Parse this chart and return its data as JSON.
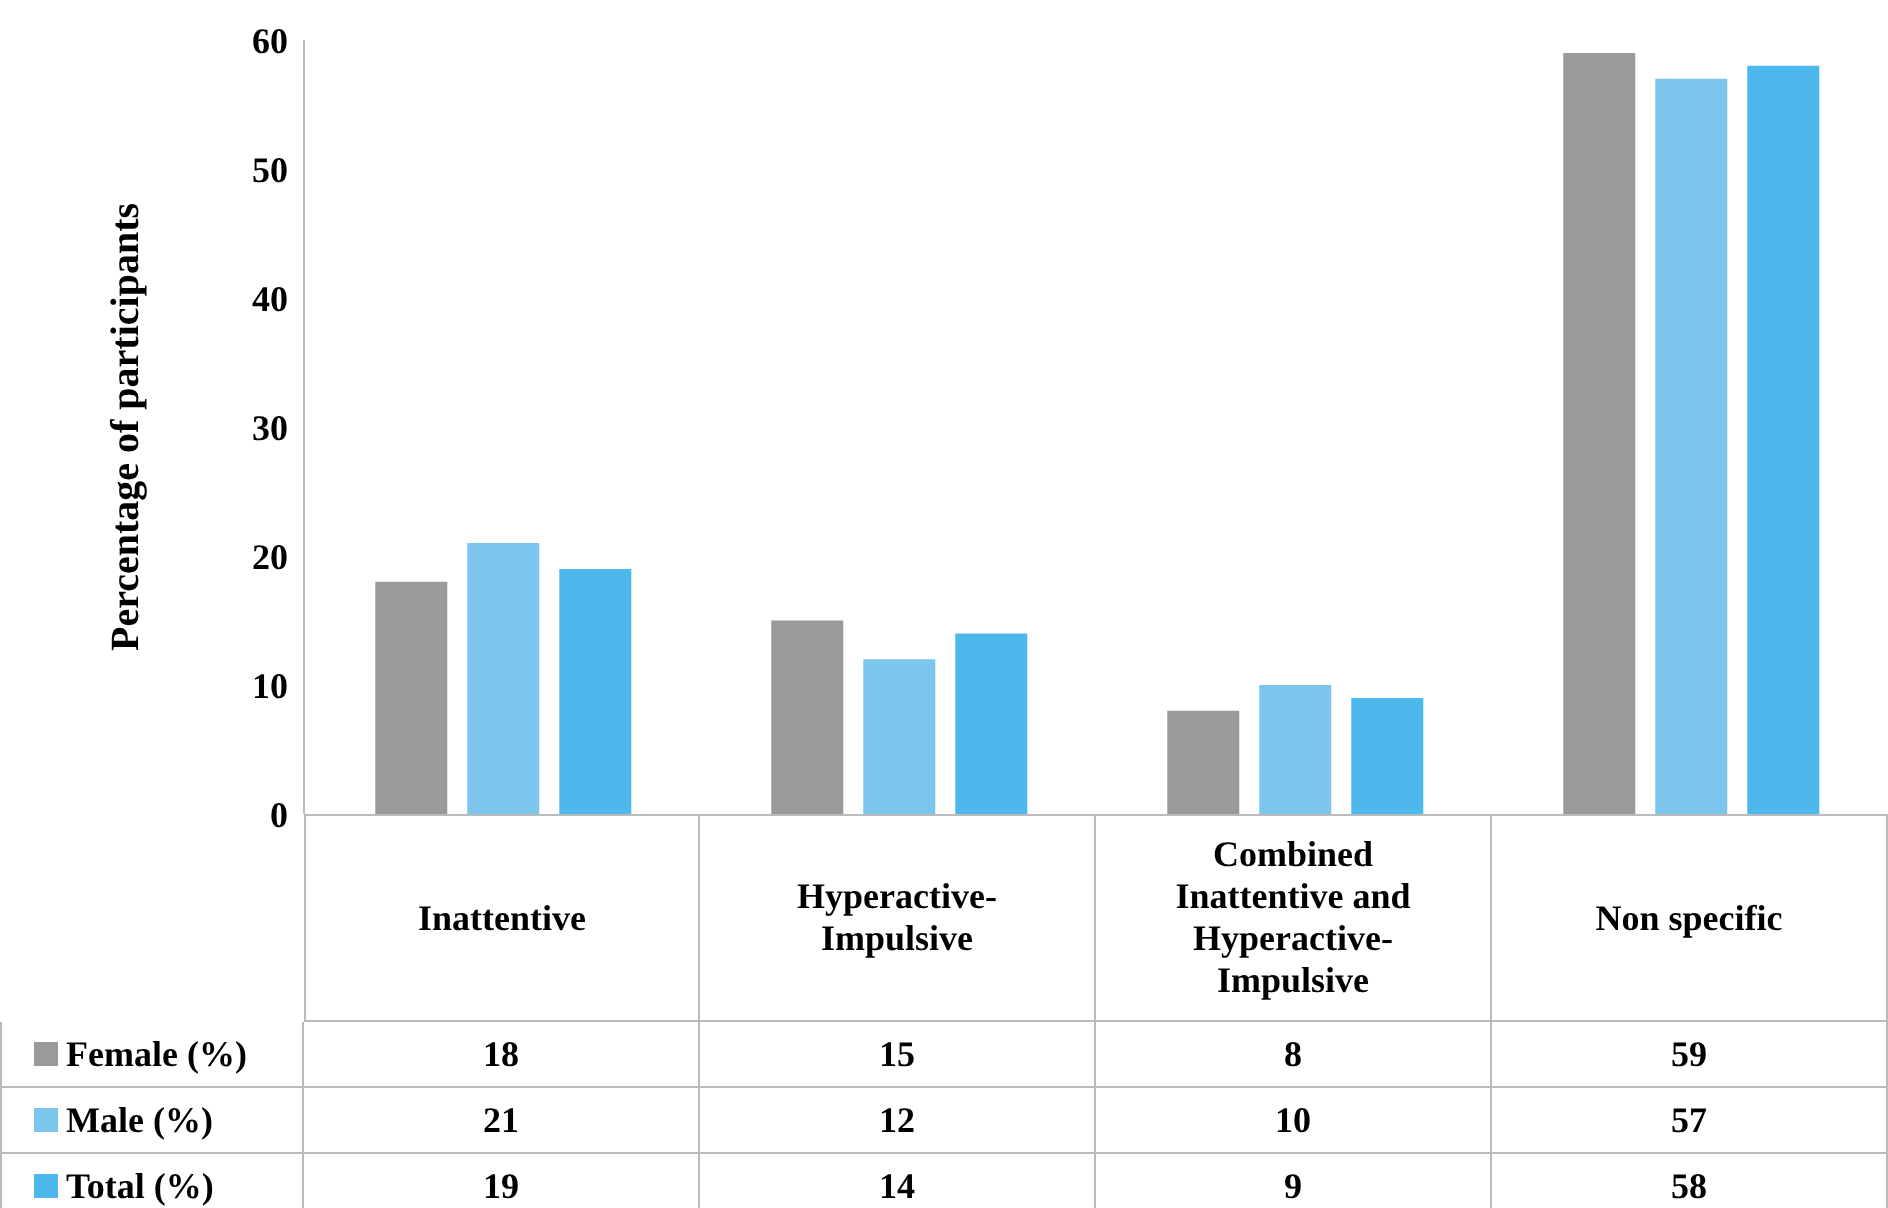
{
  "chart_data": {
    "type": "bar",
    "ylabel": "Percentage of participants",
    "categories": [
      "Inattentive",
      "Hyperactive-Impulsive",
      "Combined Inattentive and Hyperactive-Impulsive",
      "Non specific"
    ],
    "series": [
      {
        "name": "Female (%)",
        "color": "#9a9a9a",
        "values": [
          18,
          15,
          8,
          59
        ]
      },
      {
        "name": "Male (%)",
        "color": "#7cc6ee",
        "values": [
          21,
          12,
          10,
          57
        ]
      },
      {
        "name": "Total (%)",
        "color": "#4db8ec",
        "values": [
          19,
          14,
          9,
          58
        ]
      }
    ],
    "ylim": [
      0,
      60
    ],
    "yticks": [
      0,
      10,
      20,
      30,
      40,
      50,
      60
    ],
    "legend": "bottom",
    "data_labels": true
  }
}
